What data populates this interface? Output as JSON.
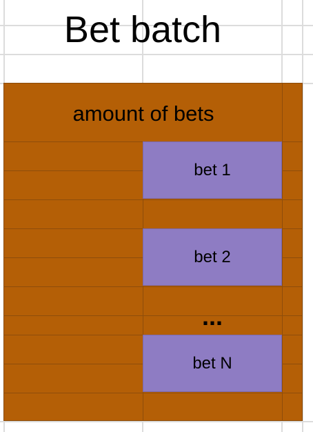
{
  "title": "Bet batch",
  "batch": {
    "label": "amount of bets",
    "bets": [
      "bet 1",
      "bet 2",
      "bet N"
    ],
    "ellipsis": "..."
  },
  "colors": {
    "batch": "#b45f06",
    "bet": "#8e7cc3",
    "grid": "#dcdcdc"
  }
}
